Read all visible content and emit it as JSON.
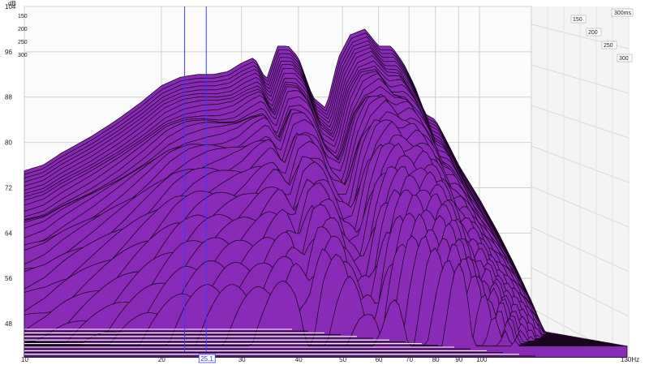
{
  "chart_data": {
    "type": "area",
    "subtype": "waterfall-3d",
    "xlabel": "",
    "ylabel": "dB",
    "x_unit": "Hz",
    "x_scale": "log",
    "xlim": [
      10,
      130
    ],
    "ylim": [
      45,
      104
    ],
    "x_ticks": [
      10,
      20,
      30,
      40,
      50,
      60,
      70,
      80,
      90,
      100,
      130
    ],
    "x_tick_labels": [
      "10",
      "20",
      "30",
      "40",
      "50",
      "60",
      "70",
      "80",
      "90",
      "100",
      "130Hz"
    ],
    "y_ticks": [
      104,
      96,
      88,
      80,
      72,
      64,
      56,
      48
    ],
    "y_tick_labels": [
      "104",
      "96",
      "88",
      "80",
      "72",
      "64",
      "56",
      "48"
    ],
    "time_ticks": [
      150,
      200,
      250,
      300
    ],
    "time_tick_labels": [
      "150",
      "200",
      "250",
      "300"
    ],
    "time_ticks_right": [
      150,
      200,
      250,
      300
    ],
    "time_tick_labels_right": [
      "150",
      "200",
      "250",
      "300"
    ],
    "time_unit_label": "300ms",
    "cursor_x": [
      22.5,
      25.1
    ],
    "cursor_label": "25.1",
    "colors": {
      "fill": "#8a2bb8",
      "line": "#1a0520",
      "cursor": "#3a3aff",
      "grid": "#d0d0d0"
    },
    "slice_count": 60,
    "front_slice": {
      "name": "",
      "x": [
        10,
        11,
        12,
        14,
        16,
        18,
        20,
        22,
        24,
        26,
        28,
        30,
        32,
        34,
        36,
        38,
        40,
        43,
        46,
        49,
        52,
        56,
        60,
        64,
        68,
        72,
        76,
        80,
        85,
        90,
        100,
        110,
        120,
        130
      ],
      "y": [
        75,
        76,
        78,
        81,
        84,
        87,
        90,
        91.5,
        92,
        92,
        92.5,
        94,
        95,
        91,
        97,
        97,
        95,
        88,
        86,
        95,
        99,
        100,
        97,
        97,
        94,
        90,
        85,
        84,
        80,
        76,
        70,
        64,
        58,
        52
      ]
    }
  }
}
